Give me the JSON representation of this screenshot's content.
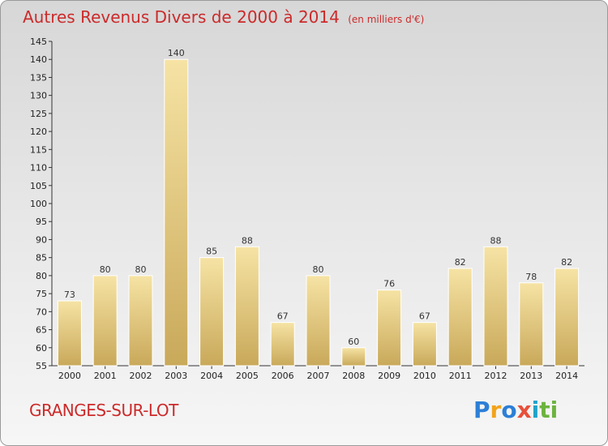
{
  "header": {
    "title": "Autres Revenus Divers de 2000 à 2014",
    "unit": "(en milliers d'€)"
  },
  "footer": {
    "commune": "GRANGES-SUR-LOT",
    "logo_letters": [
      "P",
      "r",
      "o",
      "x",
      "i",
      "ti"
    ]
  },
  "colors": {
    "title": "#cc2a2a",
    "bar_light": "#f6e3a4",
    "bar_dark": "#c9a95a"
  },
  "chart_data": {
    "type": "bar",
    "title": "Autres Revenus Divers de 2000 à 2014",
    "categories": [
      "2000",
      "2001",
      "2002",
      "2003",
      "2004",
      "2005",
      "2006",
      "2007",
      "2008",
      "2009",
      "2010",
      "2011",
      "2012",
      "2013",
      "2014"
    ],
    "values": [
      73,
      80,
      80,
      140,
      85,
      88,
      67,
      80,
      60,
      76,
      67,
      82,
      88,
      78,
      82
    ],
    "ylim": [
      55,
      145
    ],
    "ytick_step": 5,
    "grid": false,
    "legend": "none"
  }
}
